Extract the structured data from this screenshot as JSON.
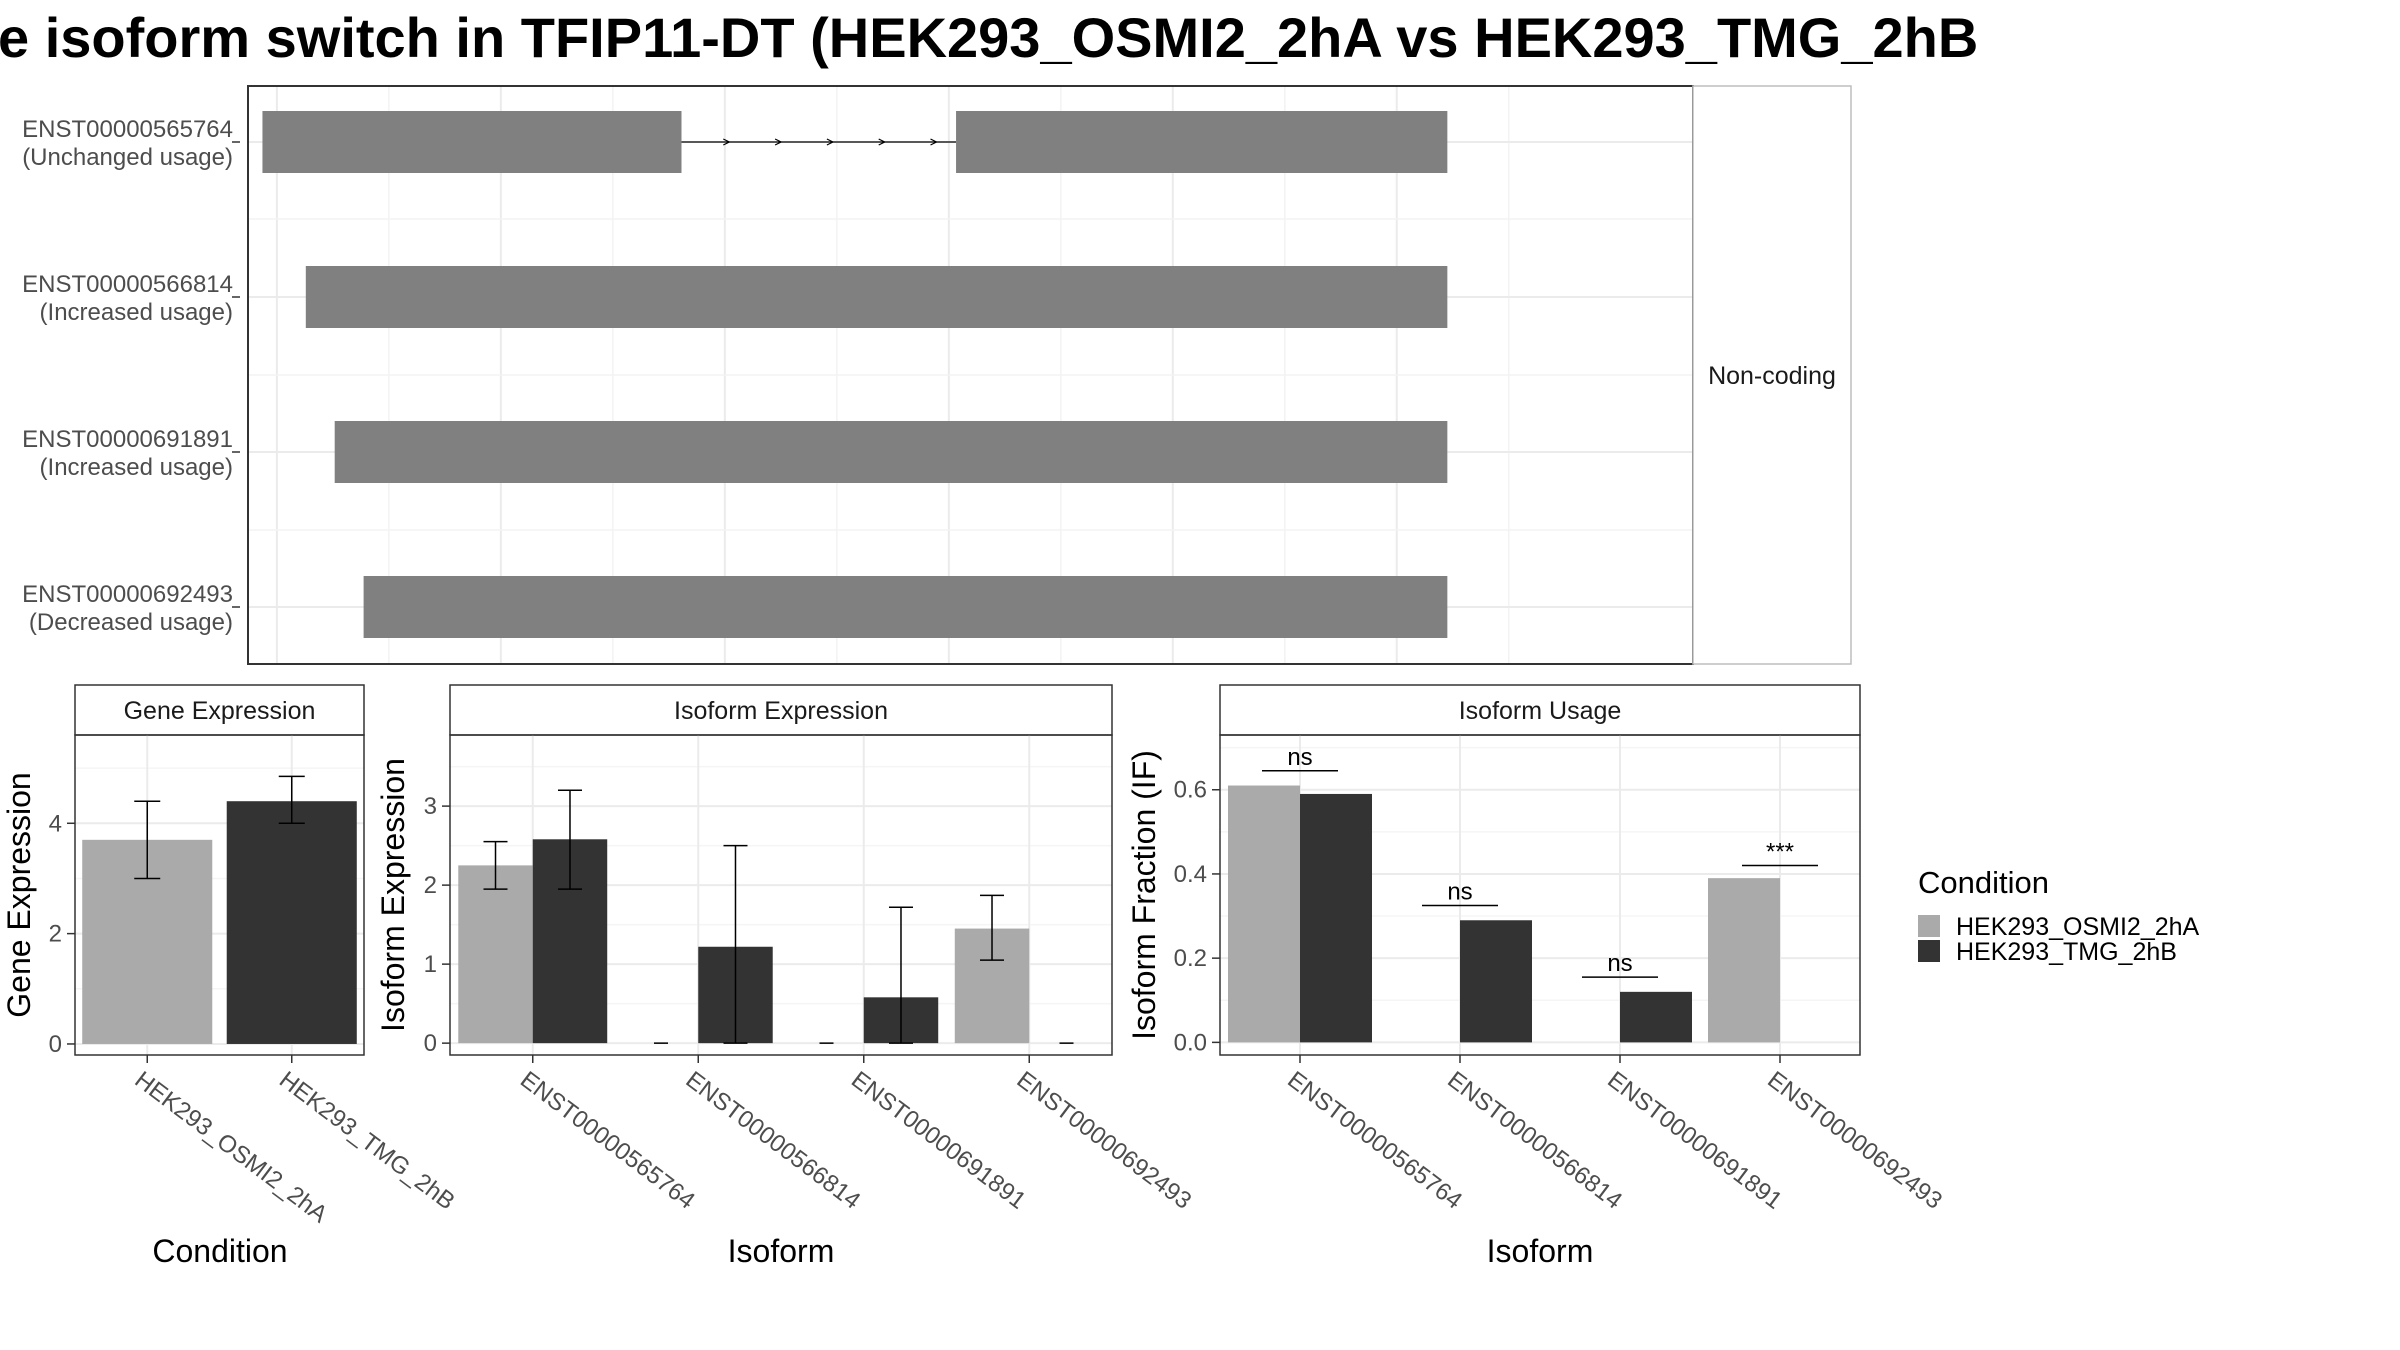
{
  "title": "e isoform switch in TFIP11-DT (HEK293_OSMI2_2hA vs HEK293_TMG_2hB",
  "colors": {
    "transcript": "#808080",
    "cond_a": "#aaaaaa",
    "cond_b": "#333333",
    "grid": "#ebebeb",
    "panel_border": "#333333",
    "strip_bg": "#ffffff"
  },
  "legend": {
    "title": "Condition",
    "items": [
      {
        "label": "HEK293_OSMI2_2hA",
        "color": "#aaaaaa"
      },
      {
        "label": "HEK293_TMG_2hB",
        "color": "#333333"
      }
    ]
  },
  "chart_data": [
    {
      "type": "gene-structure",
      "facet_label": "Non-coding",
      "transcripts": [
        {
          "id": "ENST00000565764",
          "usage": "(Unchanged usage)",
          "exons": [
            [
              0.01,
              0.3
            ],
            [
              0.49,
              0.83
            ]
          ],
          "intron": [
            0.3,
            0.49
          ]
        },
        {
          "id": "ENST00000566814",
          "usage": "(Increased usage)",
          "exons": [
            [
              0.04,
              0.83
            ]
          ]
        },
        {
          "id": "ENST00000691891",
          "usage": "(Increased usage)",
          "exons": [
            [
              0.06,
              0.83
            ]
          ]
        },
        {
          "id": "ENST00000692493",
          "usage": "(Decreased usage)",
          "exons": [
            [
              0.08,
              0.83
            ]
          ]
        }
      ]
    },
    {
      "type": "bar",
      "strip": "Gene Expression",
      "xlabel": "Condition",
      "ylabel": "Gene Expression",
      "ylim": [
        -0.2,
        5.6
      ],
      "yticks": [
        0,
        2,
        4
      ],
      "categories": [
        "HEK293_OSMI2_2hA",
        "HEK293_TMG_2hB"
      ],
      "values": [
        3.7,
        4.4
      ],
      "error": [
        [
          3.0,
          4.4
        ],
        [
          4.0,
          4.85
        ]
      ]
    },
    {
      "type": "bar",
      "strip": "Isoform Expression",
      "xlabel": "Isoform",
      "ylabel": "Isoform Expression",
      "ylim": [
        -0.15,
        3.9
      ],
      "yticks": [
        0,
        1,
        2,
        3
      ],
      "categories": [
        "ENST00000565764",
        "ENST00000566814",
        "ENST00000691891",
        "ENST00000692493"
      ],
      "series": [
        {
          "name": "HEK293_OSMI2_2hA",
          "values": [
            2.25,
            0,
            0,
            1.45
          ],
          "error": [
            [
              1.95,
              2.55
            ],
            null,
            null,
            [
              1.05,
              1.87
            ]
          ]
        },
        {
          "name": "HEK293_TMG_2hB",
          "values": [
            2.58,
            1.22,
            0.58,
            0
          ],
          "error": [
            [
              1.95,
              3.2
            ],
            [
              0.0,
              2.5
            ],
            [
              0.0,
              1.72
            ],
            null
          ]
        }
      ]
    },
    {
      "type": "bar",
      "strip": "Isoform Usage",
      "xlabel": "Isoform",
      "ylabel": "Isoform Fraction (IF)",
      "ylim": [
        -0.03,
        0.73
      ],
      "yticks": [
        0.0,
        0.2,
        0.4,
        0.6
      ],
      "ytick_labels": [
        "0.0",
        "0.2",
        "0.4",
        "0.6"
      ],
      "categories": [
        "ENST00000565764",
        "ENST00000566814",
        "ENST00000691891",
        "ENST00000692493"
      ],
      "series": [
        {
          "name": "HEK293_OSMI2_2hA",
          "values": [
            0.61,
            0,
            0,
            0.39
          ]
        },
        {
          "name": "HEK293_TMG_2hB",
          "values": [
            0.59,
            0.29,
            0.12,
            0
          ]
        }
      ],
      "significance": [
        {
          "label": "ns",
          "y": 0.645
        },
        {
          "label": "ns",
          "y": 0.325
        },
        {
          "label": "ns",
          "y": 0.155
        },
        {
          "label": "***",
          "y": 0.42
        }
      ]
    }
  ]
}
